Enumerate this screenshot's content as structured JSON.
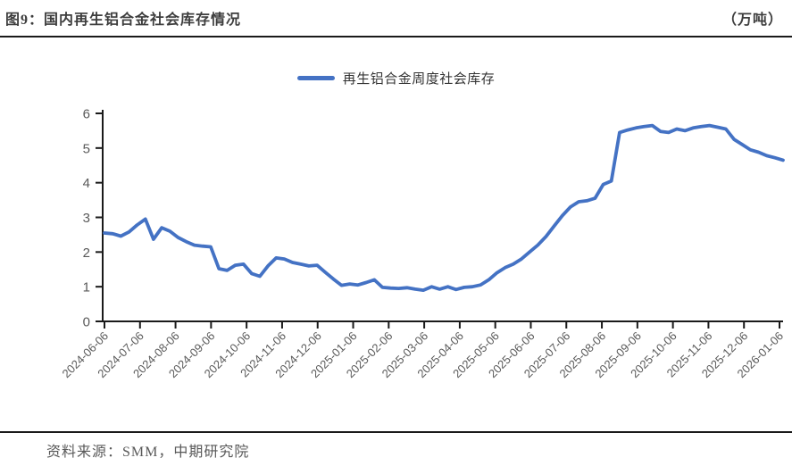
{
  "header": {
    "title": "图9：国内再生铝合金社会库存情况",
    "unit": "（万吨）"
  },
  "legend": {
    "label": "再生铝合金周度社会库存"
  },
  "footer": {
    "source": "资料来源：SMM，中期研究院"
  },
  "chart_data": {
    "type": "line",
    "title": "国内再生铝合金社会库存情况",
    "unit": "万吨",
    "ylim": [
      0,
      6
    ],
    "y_ticks": [
      0,
      1,
      2,
      3,
      4,
      5,
      6
    ],
    "grid": false,
    "legend_position": "top-center",
    "axis_color": "#1a1a1a",
    "tick_label_color": "#595959",
    "x_start_date": "2024-06-06",
    "x_frequency": "weekly",
    "x_tick_labels": [
      "2024-06-06",
      "2024-07-06",
      "2024-08-06",
      "2024-09-06",
      "2024-10-06",
      "2024-11-06",
      "2024-12-06",
      "2025-01-06",
      "2025-02-06",
      "2025-03-06",
      "2025-04-06",
      "2025-05-06",
      "2025-06-06",
      "2025-07-06",
      "2025-08-06",
      "2025-09-06",
      "2025-10-06",
      "2025-11-06",
      "2025-12-06",
      "2026-01-06"
    ],
    "series": [
      {
        "name": "再生铝合金周度社会库存",
        "color": "#4472C4",
        "values": [
          2.55,
          2.53,
          2.46,
          2.58,
          2.78,
          2.95,
          2.37,
          2.7,
          2.6,
          2.42,
          2.3,
          2.2,
          2.17,
          2.15,
          1.52,
          1.47,
          1.62,
          1.65,
          1.38,
          1.3,
          1.6,
          1.83,
          1.8,
          1.7,
          1.65,
          1.6,
          1.62,
          1.42,
          1.22,
          1.04,
          1.08,
          1.05,
          1.12,
          1.2,
          0.98,
          0.96,
          0.95,
          0.97,
          0.93,
          0.9,
          1.0,
          0.93,
          1.0,
          0.92,
          0.98,
          1.0,
          1.05,
          1.2,
          1.4,
          1.55,
          1.65,
          1.8,
          2.0,
          2.2,
          2.45,
          2.75,
          3.05,
          3.3,
          3.45,
          3.48,
          3.55,
          3.95,
          4.05,
          5.45,
          5.52,
          5.58,
          5.62,
          5.65,
          5.48,
          5.45,
          5.55,
          5.5,
          5.58,
          5.62,
          5.65,
          5.6,
          5.55,
          5.25,
          5.1,
          4.95,
          4.88,
          4.78,
          4.72,
          4.65
        ]
      }
    ]
  }
}
